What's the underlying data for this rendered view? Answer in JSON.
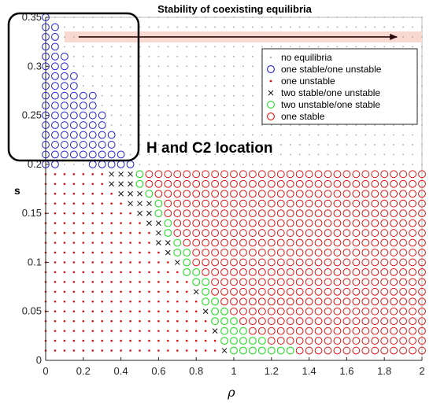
{
  "chart_data": {
    "type": "scatter",
    "title": "Stability of coexisting equilibria",
    "xlabel": "ρ",
    "ylabel": "s",
    "xlim": [
      0,
      2
    ],
    "ylim": [
      0,
      0.35
    ],
    "grid": {
      "x_step": 0.05,
      "y_step": 0.01
    },
    "xticks": [
      "0",
      "0.2",
      "0.4",
      "0.6",
      "0.8",
      "1",
      "1.2",
      "1.4",
      "1.6",
      "1.8",
      "2"
    ],
    "xtick_values": [
      0,
      0.2,
      0.4,
      0.6,
      0.8,
      1,
      1.2,
      1.4,
      1.6,
      1.8,
      2
    ],
    "yticks": [
      "0",
      "0.05",
      "0.1",
      "0.15",
      "0.2",
      "0.25",
      "0.3",
      "0.35"
    ],
    "ytick_values": [
      0,
      0.05,
      0.1,
      0.15,
      0.2,
      0.25,
      0.3,
      0.35
    ],
    "legend_placement": "upper-right",
    "legend": [
      {
        "label": "no equilibria",
        "marker": "dot",
        "color": "#a8a8a8"
      },
      {
        "label": "one stable/one unstable",
        "marker": "circle",
        "color": "#1f1fd6"
      },
      {
        "label": "one unstable",
        "marker": "dot",
        "color": "#e01010"
      },
      {
        "label": "two stable/one unstable",
        "marker": "cross",
        "color": "#111111"
      },
      {
        "label": "two unstable/one stable",
        "marker": "circle",
        "color": "#22dd22"
      },
      {
        "label": "one stable",
        "marker": "circle",
        "color": "#e01010"
      }
    ],
    "regions": {
      "upper_limit_s": 0.19,
      "blue_rho_max_by_s": [
        {
          "s": 0.35,
          "rho_max": 0
        },
        {
          "s": 0.34,
          "rho_max": 0.05
        },
        {
          "s": 0.33,
          "rho_max": 0.05
        },
        {
          "s": 0.32,
          "rho_max": 0.05
        },
        {
          "s": 0.31,
          "rho_max": 0.1
        },
        {
          "s": 0.3,
          "rho_max": 0.1
        },
        {
          "s": 0.29,
          "rho_max": 0.15
        },
        {
          "s": 0.28,
          "rho_max": 0.15
        },
        {
          "s": 0.27,
          "rho_max": 0.25
        },
        {
          "s": 0.26,
          "rho_max": 0.25
        },
        {
          "s": 0.25,
          "rho_max": 0.3
        },
        {
          "s": 0.24,
          "rho_max": 0.3
        },
        {
          "s": 0.23,
          "rho_max": 0.35
        },
        {
          "s": 0.22,
          "rho_max": 0.35
        },
        {
          "s": 0.21,
          "rho_max": 0.4
        },
        {
          "s": 0.2,
          "rho_max": 0.4
        }
      ],
      "blue_row_s02_rho_range": [
        0.25,
        0.45
      ],
      "cross_boundary": [
        {
          "s": 0.19,
          "cross_start": 0.35,
          "green_start": 0.5,
          "green_end": 0.5
        },
        {
          "s": 0.18,
          "cross_start": 0.35,
          "green_start": 0.5,
          "green_end": 0.5
        },
        {
          "s": 0.17,
          "cross_start": 0.4,
          "green_start": 0.55,
          "green_end": 0.55
        },
        {
          "s": 0.16,
          "cross_start": 0.45,
          "green_start": 0.6,
          "green_end": 0.6
        },
        {
          "s": 0.15,
          "cross_start": 0.5,
          "green_start": 0.6,
          "green_end": 0.6
        },
        {
          "s": 0.14,
          "cross_start": 0.55,
          "green_start": 0.65,
          "green_end": 0.65
        },
        {
          "s": 0.13,
          "cross_start": 0.6,
          "green_start": 0.65,
          "green_end": 0.65
        },
        {
          "s": 0.12,
          "cross_start": 0.6,
          "green_start": 0.7,
          "green_end": 0.7
        },
        {
          "s": 0.11,
          "cross_start": 0.65,
          "green_start": 0.7,
          "green_end": 0.75
        },
        {
          "s": 0.1,
          "cross_start": 0.7,
          "green_start": 0.75,
          "green_end": 0.75
        },
        {
          "s": 0.09,
          "cross_start": 0.75,
          "green_start": 0.75,
          "green_end": 0.8
        },
        {
          "s": 0.08,
          "cross_start": 0.8,
          "green_start": 0.8,
          "green_end": 0.85
        },
        {
          "s": 0.07,
          "cross_start": 0.8,
          "green_start": 0.85,
          "green_end": 0.85
        },
        {
          "s": 0.06,
          "cross_start": 0.85,
          "green_start": 0.85,
          "green_end": 0.9
        },
        {
          "s": 0.05,
          "cross_start": 0.85,
          "green_start": 0.9,
          "green_end": 0.95
        },
        {
          "s": 0.04,
          "cross_start": 0.9,
          "green_start": 0.9,
          "green_end": 1.0
        },
        {
          "s": 0.03,
          "cross_start": 0.9,
          "green_start": 0.95,
          "green_end": 1.05
        },
        {
          "s": 0.02,
          "cross_start": 0.95,
          "green_start": 0.95,
          "green_end": 1.15
        },
        {
          "s": 0.01,
          "cross_start": 0.95,
          "green_start": 1.0,
          "green_end": 1.3
        }
      ],
      "cross_end_offset": 0.1
    },
    "annotations": [
      {
        "text": "H and C2 location",
        "anchor_rho": 0.55,
        "anchor_s": 0.214
      },
      {
        "text": "",
        "type": "arrow",
        "from": [
          0.2,
          0.33
        ],
        "to": [
          1.85,
          0.33
        ]
      }
    ]
  }
}
